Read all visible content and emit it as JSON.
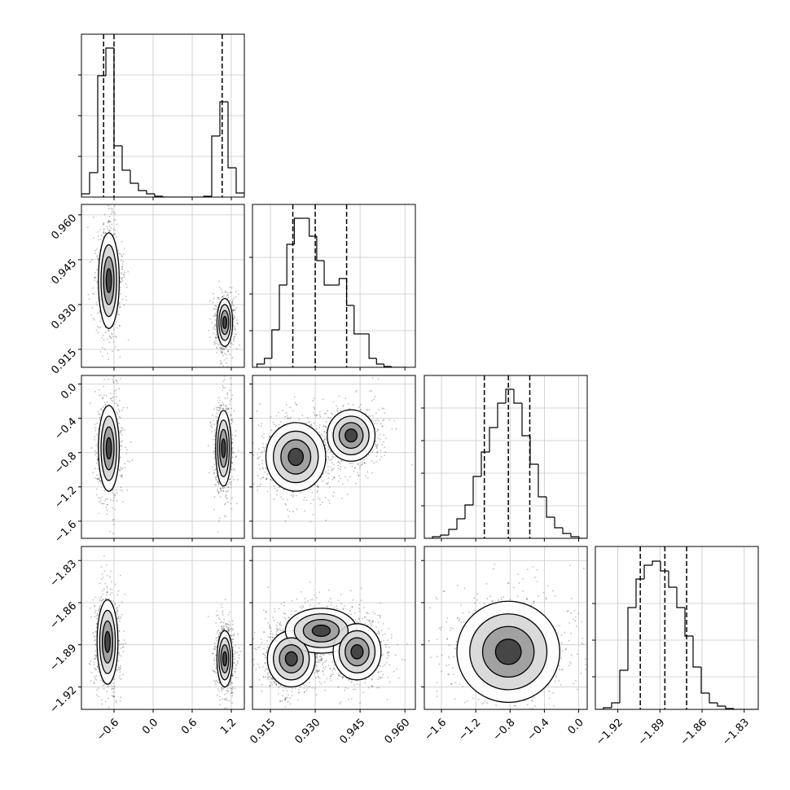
{
  "chart_data": {
    "type": "corner",
    "parameters": [
      {
        "lim": [
          -1.1,
          1.4
        ],
        "ticks": [
          {
            "value": -0.6,
            "label": "−0.6"
          },
          {
            "value": 0.0,
            "label": "0.0"
          },
          0.6,
          1.2
        ],
        "quantiles": [
          -0.76,
          -0.6,
          1.06
        ],
        "hist": {
          "bins": [
            -1.1,
            -0.975,
            -0.85,
            -0.725,
            -0.6,
            -0.475,
            -0.35,
            -0.225,
            -0.1,
            0.025,
            0.15,
            0.275,
            0.4,
            0.525,
            0.65,
            0.775,
            0.9,
            1.025,
            1.15,
            1.275,
            1.4
          ],
          "counts": [
            4,
            30,
            149,
            183,
            63,
            33,
            17,
            8,
            4,
            1,
            0,
            0,
            0,
            0,
            0,
            1,
            75,
            117,
            36,
            5
          ],
          "ylim": [
            0,
            200
          ],
          "yticks": [
            50,
            100,
            150
          ]
        }
      },
      {
        "lim": [
          0.909,
          0.9635
        ],
        "ticks": [
          0.915,
          {
            "value": 0.93,
            "label": "0.930"
          },
          0.945,
          {
            "value": 0.96,
            "label": "0.960"
          }
        ],
        "quantiles": [
          0.9225,
          0.93,
          0.9405
        ],
        "hist": {
          "bins": [
            0.9105,
            0.913,
            0.9155,
            0.918,
            0.9205,
            0.923,
            0.9255,
            0.928,
            0.9305,
            0.933,
            0.9355,
            0.938,
            0.9405,
            0.943,
            0.9455,
            0.948,
            0.9505,
            0.953,
            0.9555,
            0.958,
            0.9605
          ],
          "counts": [
            4,
            11,
            46,
            101,
            151,
            183,
            183,
            161,
            131,
            101,
            101,
            109,
            76,
            41,
            41,
            11,
            4,
            1,
            0,
            0
          ],
          "ylim": [
            0,
            200
          ],
          "yticks": [
            45,
            90,
            135
          ]
        }
      },
      {
        "lim": [
          -1.8,
          0.1
        ],
        "ticks": [
          {
            "value": -1.6,
            "label": "−1.6"
          },
          {
            "value": -1.2,
            "label": "−1.2"
          },
          {
            "value": -0.8,
            "label": "−0.8"
          },
          {
            "value": -0.4,
            "label": "−0.4"
          },
          {
            "value": 0.0,
            "label": "0.0"
          }
        ],
        "quantiles": [
          -1.1,
          -0.82,
          -0.57
        ],
        "hist": {
          "bins": [
            -1.8,
            -1.705,
            -1.61,
            -1.515,
            -1.42,
            -1.325,
            -1.23,
            -1.135,
            -1.04,
            -0.945,
            -0.85,
            -0.755,
            -0.66,
            -0.565,
            -0.47,
            -0.375,
            -0.28,
            -0.185,
            -0.09,
            0.005,
            0.1
          ],
          "counts": [
            0,
            2,
            4,
            11,
            24,
            41,
            76,
            106,
            136,
            166,
            183,
            166,
            126,
            91,
            51,
            26,
            13,
            6,
            2,
            0
          ],
          "ylim": [
            0,
            200
          ],
          "yticks": [
            40,
            80,
            120,
            160
          ]
        }
      },
      {
        "lim": [
          -1.936,
          -1.82
        ],
        "ticks": [
          {
            "value": -1.92,
            "label": "−1.92"
          },
          {
            "value": -1.89,
            "label": "−1.89"
          },
          {
            "value": -1.86,
            "label": "−1.86"
          },
          {
            "value": -1.83,
            "label": "−1.83"
          }
        ],
        "quantiles": [
          -1.904,
          -1.8865,
          -1.871
        ],
        "hist": {
          "bins": [
            -1.936,
            -1.9302,
            -1.9244,
            -1.9186,
            -1.9128,
            -1.907,
            -1.9012,
            -1.8954,
            -1.8896,
            -1.8838,
            -1.878,
            -1.8722,
            -1.8664,
            -1.8606,
            -1.8548,
            -1.849,
            -1.8432,
            -1.8374,
            -1.8316,
            -1.8258,
            -1.82
          ],
          "counts": [
            0,
            2,
            8,
            48,
            125,
            160,
            177,
            182,
            170,
            150,
            125,
            90,
            52,
            20,
            8,
            4,
            1,
            0,
            0,
            0
          ],
          "ylim": [
            0,
            200
          ],
          "yticks": [
            40,
            85,
            130
          ]
        }
      }
    ],
    "pairs": [
      {
        "x": 0,
        "y": 1,
        "modes": [
          {
            "x": -0.68,
            "y": 0.938,
            "sx": 0.08,
            "sy": 0.008
          },
          {
            "x": 1.1,
            "y": 0.924,
            "sx": 0.06,
            "sy": 0.004
          }
        ]
      },
      {
        "x": 0,
        "y": 2,
        "modes": [
          {
            "x": -0.68,
            "y": -0.75,
            "sx": 0.08,
            "sy": 0.25
          },
          {
            "x": 1.08,
            "y": -0.75,
            "sx": 0.06,
            "sy": 0.22
          }
        ]
      },
      {
        "x": 0,
        "y": 3,
        "modes": [
          {
            "x": -0.7,
            "y": -1.888,
            "sx": 0.08,
            "sy": 0.015
          },
          {
            "x": 1.1,
            "y": -1.9,
            "sx": 0.06,
            "sy": 0.01
          }
        ]
      },
      {
        "x": 1,
        "y": 2,
        "modes": [
          {
            "x": 0.9235,
            "y": -0.85,
            "sx": 0.005,
            "sy": 0.2
          },
          {
            "x": 0.942,
            "y": -0.6,
            "sx": 0.004,
            "sy": 0.15
          }
        ]
      },
      {
        "x": 1,
        "y": 3,
        "modes": [
          {
            "x": 0.922,
            "y": -1.9,
            "sx": 0.004,
            "sy": 0.01
          },
          {
            "x": 0.932,
            "y": -1.88,
            "sx": 0.006,
            "sy": 0.008
          },
          {
            "x": 0.944,
            "y": -1.895,
            "sx": 0.004,
            "sy": 0.01
          }
        ]
      },
      {
        "x": 2,
        "y": 3,
        "modes": [
          {
            "x": -0.82,
            "y": -1.895,
            "sx": 0.3,
            "sy": 0.018
          }
        ]
      }
    ]
  }
}
